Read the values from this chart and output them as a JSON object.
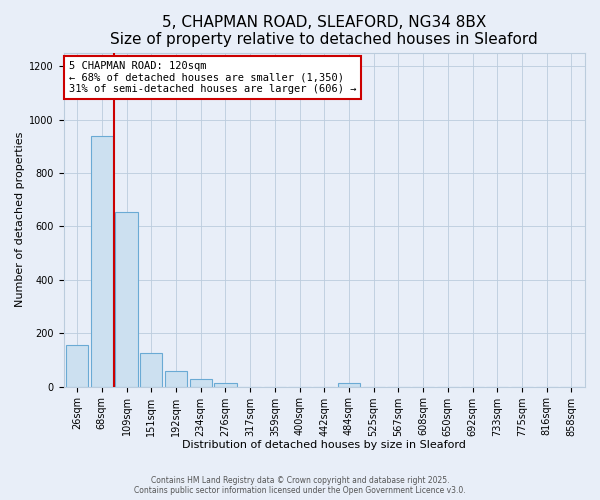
{
  "title": "5, CHAPMAN ROAD, SLEAFORD, NG34 8BX",
  "subtitle": "Size of property relative to detached houses in Sleaford",
  "xlabel": "Distribution of detached houses by size in Sleaford",
  "ylabel": "Number of detached properties",
  "bar_labels": [
    "26sqm",
    "68sqm",
    "109sqm",
    "151sqm",
    "192sqm",
    "234sqm",
    "276sqm",
    "317sqm",
    "359sqm",
    "400sqm",
    "442sqm",
    "484sqm",
    "525sqm",
    "567sqm",
    "608sqm",
    "650sqm",
    "692sqm",
    "733sqm",
    "775sqm",
    "816sqm",
    "858sqm"
  ],
  "bar_values": [
    155,
    940,
    655,
    125,
    57,
    27,
    13,
    0,
    0,
    0,
    0,
    14,
    0,
    0,
    0,
    0,
    0,
    0,
    0,
    0,
    0
  ],
  "bar_color": "#cce0f0",
  "bar_edge_color": "#6aaad4",
  "vline_index": 2,
  "vline_color": "#cc0000",
  "annotation_title": "5 CHAPMAN ROAD: 120sqm",
  "annotation_line1": "← 68% of detached houses are smaller (1,350)",
  "annotation_line2": "31% of semi-detached houses are larger (606) →",
  "annotation_box_color": "#ffffff",
  "annotation_box_edge": "#cc0000",
  "ylim": [
    0,
    1250
  ],
  "yticks": [
    0,
    200,
    400,
    600,
    800,
    1000,
    1200
  ],
  "grid_color": "#bbccdd",
  "background_color": "#e8eef8",
  "footer1": "Contains HM Land Registry data © Crown copyright and database right 2025.",
  "footer2": "Contains public sector information licensed under the Open Government Licence v3.0.",
  "title_fontsize": 11,
  "label_fontsize": 8,
  "tick_fontsize": 7
}
